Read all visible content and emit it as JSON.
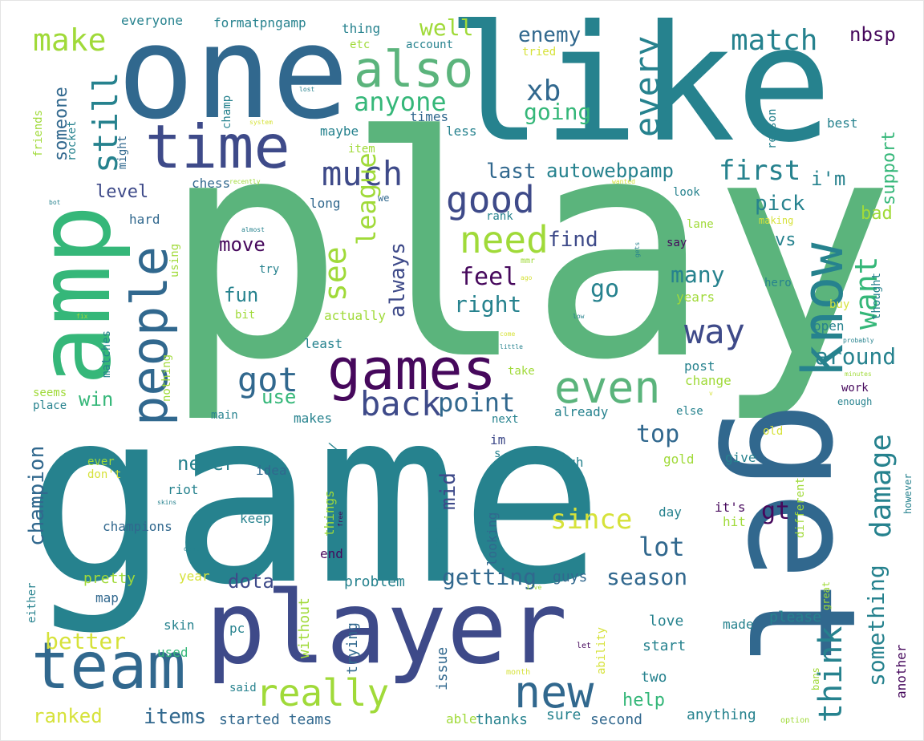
{
  "palette": {
    "dark_purple": "#46085c",
    "indigo": "#3e4a89",
    "slate_blue": "#31688e",
    "teal": "#26828e",
    "green_teal": "#35b779",
    "sea_green": "#5bb47c",
    "yellow_green": "#a0da39",
    "yellow": "#d6e23a",
    "pale_yellow": "#e0e86a"
  },
  "words": [
    {
      "text": "play"
    },
    {
      "text": "game"
    },
    {
      "text": "like"
    },
    {
      "text": "one"
    },
    {
      "text": "get"
    },
    {
      "text": "amp"
    },
    {
      "text": "player"
    },
    {
      "text": "time"
    },
    {
      "text": "team"
    },
    {
      "text": "games"
    },
    {
      "text": "people"
    },
    {
      "text": "know"
    },
    {
      "text": "think"
    },
    {
      "text": "also"
    },
    {
      "text": "new"
    },
    {
      "text": "even"
    },
    {
      "text": "really"
    },
    {
      "text": "good"
    },
    {
      "text": "need"
    },
    {
      "text": "back"
    },
    {
      "text": "much"
    },
    {
      "text": "way"
    },
    {
      "text": "got"
    },
    {
      "text": "damage"
    },
    {
      "text": "still"
    },
    {
      "text": "every"
    },
    {
      "text": "make"
    },
    {
      "text": "see"
    },
    {
      "text": "want"
    },
    {
      "text": "match"
    },
    {
      "text": "xb"
    },
    {
      "text": "first"
    },
    {
      "text": "league"
    },
    {
      "text": "something"
    },
    {
      "text": "anyone"
    },
    {
      "text": "point"
    },
    {
      "text": "since"
    },
    {
      "text": "lot"
    },
    {
      "text": "feel"
    },
    {
      "text": "right"
    },
    {
      "text": "champion"
    },
    {
      "text": "better"
    },
    {
      "text": "season"
    },
    {
      "text": "items"
    },
    {
      "text": "ranked"
    },
    {
      "text": "getting"
    },
    {
      "text": "go"
    },
    {
      "text": "top"
    },
    {
      "text": "around"
    },
    {
      "text": "many"
    },
    {
      "text": "always"
    },
    {
      "text": "gt"
    },
    {
      "text": "well"
    },
    {
      "text": "going"
    },
    {
      "text": "enemy"
    },
    {
      "text": "autowebpamp"
    },
    {
      "text": "last"
    },
    {
      "text": "find"
    },
    {
      "text": "pick"
    },
    {
      "text": "win"
    },
    {
      "text": "use"
    },
    {
      "text": "fun"
    },
    {
      "text": "move"
    },
    {
      "text": "never"
    },
    {
      "text": "mid"
    },
    {
      "text": "dota"
    },
    {
      "text": "nbsp"
    },
    {
      "text": "support"
    },
    {
      "text": "i'm"
    },
    {
      "text": "level"
    },
    {
      "text": "someone"
    },
    {
      "text": "vs"
    },
    {
      "text": "bad"
    },
    {
      "text": "help"
    },
    {
      "text": "started teams"
    },
    {
      "text": "thanks"
    },
    {
      "text": "anything"
    },
    {
      "text": "second"
    },
    {
      "text": "able"
    },
    {
      "text": "sure"
    },
    {
      "text": "issue"
    },
    {
      "text": "two"
    },
    {
      "text": "love"
    },
    {
      "text": "start"
    },
    {
      "text": "made"
    },
    {
      "text": "please"
    },
    {
      "text": "another"
    },
    {
      "text": "trying"
    },
    {
      "text": "without"
    },
    {
      "text": "problem"
    },
    {
      "text": "guys"
    },
    {
      "text": "pretty"
    },
    {
      "text": "year"
    },
    {
      "text": "map"
    },
    {
      "text": "skin"
    },
    {
      "text": "pc"
    },
    {
      "text": "used"
    },
    {
      "text": "either"
    },
    {
      "text": "said"
    },
    {
      "text": "end"
    },
    {
      "text": "champions"
    },
    {
      "text": "keep"
    },
    {
      "text": "things"
    },
    {
      "text": "instead"
    },
    {
      "text": "lose"
    },
    {
      "text": "looking"
    },
    {
      "text": "day"
    },
    {
      "text": "it's"
    },
    {
      "text": "hit"
    },
    {
      "text": "high"
    },
    {
      "text": "gold"
    },
    {
      "text": "give"
    },
    {
      "text": "riot"
    },
    {
      "text": "idea"
    },
    {
      "text": "ever"
    },
    {
      "text": "don't"
    },
    {
      "text": "im"
    },
    {
      "text": "s"
    },
    {
      "text": "different"
    },
    {
      "text": "old"
    },
    {
      "text": "great"
    },
    {
      "text": "however"
    },
    {
      "text": "bans"
    },
    {
      "text": "ability"
    },
    {
      "text": "let"
    },
    {
      "text": "month"
    },
    {
      "text": "option"
    },
    {
      "text": "main"
    },
    {
      "text": "makes"
    },
    {
      "text": "next"
    },
    {
      "text": "already"
    },
    {
      "text": "else"
    },
    {
      "text": "work"
    },
    {
      "text": "enough"
    },
    {
      "text": "seems"
    },
    {
      "text": "place"
    },
    {
      "text": "nothing"
    },
    {
      "text": "matches"
    },
    {
      "text": "least"
    },
    {
      "text": "take"
    },
    {
      "text": "post"
    },
    {
      "text": "change"
    },
    {
      "text": "open"
    },
    {
      "text": "buy"
    },
    {
      "text": "actually"
    },
    {
      "text": "bit"
    },
    {
      "text": "years"
    },
    {
      "text": "thought"
    },
    {
      "text": "hero"
    },
    {
      "text": "say"
    },
    {
      "text": "try"
    },
    {
      "text": "mmr"
    },
    {
      "text": "using"
    },
    {
      "text": "hard"
    },
    {
      "text": "long"
    },
    {
      "text": "rank"
    },
    {
      "text": "lane"
    },
    {
      "text": "making"
    },
    {
      "text": "look"
    },
    {
      "text": "chess"
    },
    {
      "text": "item"
    },
    {
      "text": "might"
    },
    {
      "text": "rocket"
    },
    {
      "text": "friends"
    },
    {
      "text": "maybe"
    },
    {
      "text": "less"
    },
    {
      "text": "times"
    },
    {
      "text": "champ"
    },
    {
      "text": "reason"
    },
    {
      "text": "seconds"
    },
    {
      "text": "best"
    },
    {
      "text": "tried"
    },
    {
      "text": "account"
    },
    {
      "text": "etc"
    },
    {
      "text": "thing"
    },
    {
      "text": "formatpngamp"
    },
    {
      "text": "everyone"
    },
    {
      "text": "system"
    },
    {
      "text": "lost"
    },
    {
      "text": "bot"
    },
    {
      "text": "recently"
    },
    {
      "text": "wanted"
    },
    {
      "text": "we"
    },
    {
      "text": "almost"
    },
    {
      "text": "gets"
    },
    {
      "text": "ago"
    },
    {
      "text": "low"
    },
    {
      "text": "probably"
    },
    {
      "text": "minutes"
    },
    {
      "text": "little"
    },
    {
      "text": "come"
    },
    {
      "text": "fix"
    },
    {
      "text": "skins"
    },
    {
      "text": "free"
    },
    {
      "text": "dont"
    },
    {
      "text": "i've"
    },
    {
      "text": "v"
    },
    {
      "text": "\\"
    }
  ]
}
